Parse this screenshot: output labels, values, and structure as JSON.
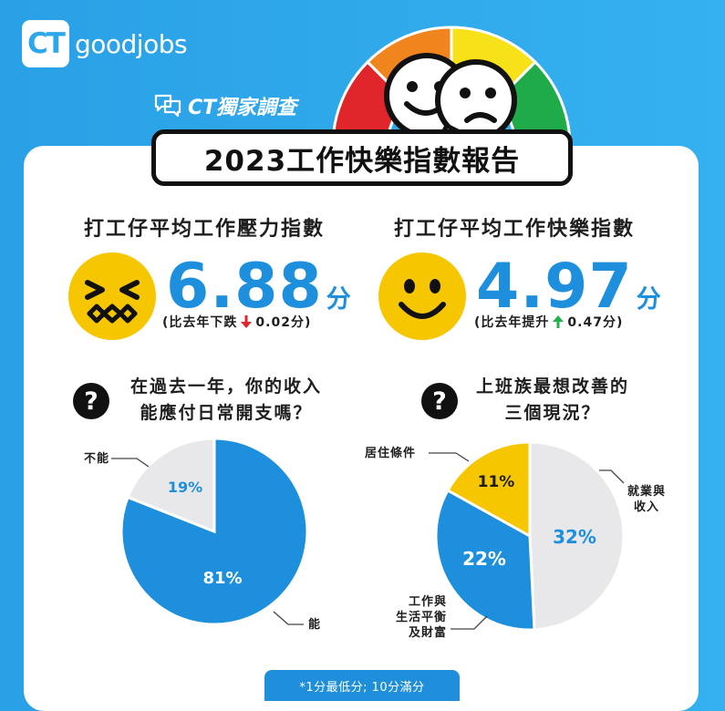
{
  "brand": {
    "logo_mark": "CT",
    "logo_text": "goodjobs"
  },
  "header": {
    "exclusive": "CT獨家調查",
    "title": "2023工作快樂指數報告"
  },
  "colors": {
    "blue": "#1e8fdc",
    "grey": "#e8e8ea",
    "yellow": "#f6c600",
    "red": "#e0262b",
    "green": "#1fb34a",
    "gauge": [
      "#e0262b",
      "#f0841d",
      "#f7e21a",
      "#1fab4a"
    ]
  },
  "stress": {
    "title": "打工仔平均工作壓力指數",
    "value": "6.88",
    "unit": "分",
    "note_prefix": "(比去年下跌",
    "note_delta": "0.02分)",
    "arrow": "down"
  },
  "happy": {
    "title": "打工仔平均工作快樂指數",
    "value": "4.97",
    "unit": "分",
    "note_prefix": "(比去年提升",
    "note_delta": "0.47分)",
    "arrow": "up"
  },
  "question1": {
    "mark": "?",
    "line1": "在過去一年，你的收入",
    "line2": "能應付日常開支嗎？"
  },
  "question2": {
    "mark": "?",
    "line1": "上班族最想改善的",
    "line2": "三個現況？"
  },
  "chart_data": [
    {
      "type": "pie",
      "title": "在過去一年，你的收入能應付日常開支嗎？",
      "slices": [
        {
          "label": "能",
          "value": 81,
          "display": "81%",
          "color": "#1e8fdc"
        },
        {
          "label": "不能",
          "value": 19,
          "display": "19%",
          "color": "#e8e8ea"
        }
      ]
    },
    {
      "type": "pie",
      "title": "上班族最想改善的三個現況？",
      "slices": [
        {
          "label": "就業與收入",
          "value": 32,
          "display": "32%",
          "color": "#e8e8ea"
        },
        {
          "label": "工作與生活平衡及財富",
          "value": 22,
          "display": "22%",
          "color": "#1e8fdc"
        },
        {
          "label": "居住條件",
          "value": 11,
          "display": "11%",
          "color": "#f6c600"
        }
      ]
    }
  ],
  "pie1_labels": {
    "no": "不能",
    "yes": "能"
  },
  "pie2_labels": {
    "housing": "居住條件",
    "job_l1": "就業與",
    "job_l2": "收入",
    "wlb_l1": "工作與",
    "wlb_l2": "生活平衡",
    "wlb_l3": "及財富"
  },
  "footnote": "*1分最低分; 10分滿分"
}
